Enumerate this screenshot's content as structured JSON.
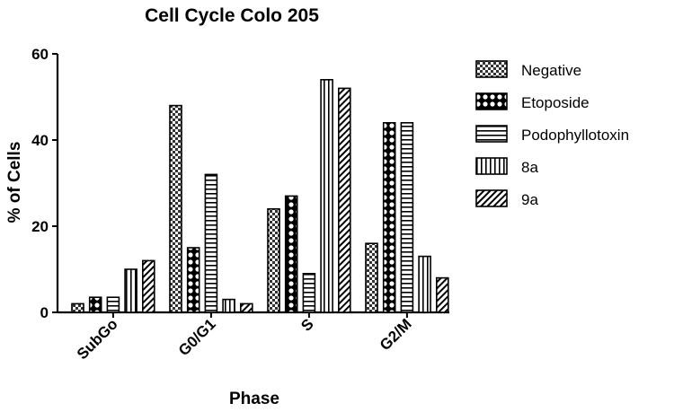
{
  "chart_data": {
    "type": "bar",
    "title": "Cell Cycle Colo 205",
    "xlabel": "Phase",
    "ylabel": "% of Cells",
    "categories": [
      "SubGo",
      "G0/G1",
      "S",
      "G2/M"
    ],
    "ylim": [
      0,
      60
    ],
    "yticks": [
      0,
      20,
      40,
      60
    ],
    "grid": false,
    "legend_position": "right",
    "series": [
      {
        "name": "Negative",
        "pattern": "checker",
        "values": [
          2,
          48,
          24,
          16
        ]
      },
      {
        "name": "Etoposide",
        "pattern": "dots",
        "values": [
          3.5,
          15,
          27,
          44
        ]
      },
      {
        "name": "Podophyllotoxin",
        "pattern": "horizontal",
        "values": [
          3.5,
          32,
          9,
          44
        ]
      },
      {
        "name": "8a",
        "pattern": "vertical",
        "values": [
          10,
          3,
          54,
          13
        ]
      },
      {
        "name": "9a",
        "pattern": "diagonal",
        "values": [
          12,
          2,
          52,
          8
        ]
      }
    ]
  }
}
